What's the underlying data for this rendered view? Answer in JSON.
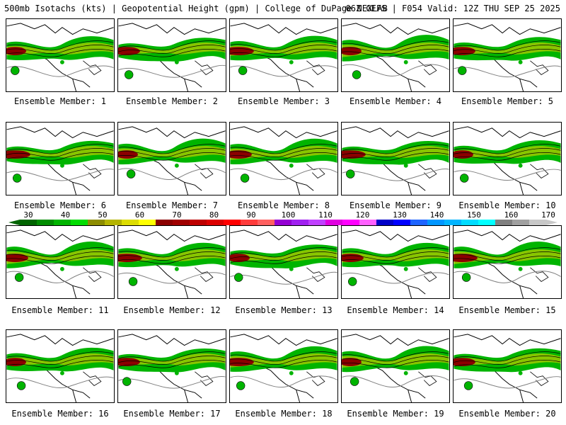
{
  "header": {
    "title": "500mb Isotachs (kts) | Geopotential Height (gpm) | College of DuPage NEXLAB",
    "run_info": "06Z GEFS | F054 Valid: 12Z THU SEP 25 2025"
  },
  "colorbar": {
    "labels": [
      "30",
      "40",
      "50",
      "60",
      "70",
      "80",
      "90",
      "100",
      "110",
      "120",
      "130",
      "140",
      "150",
      "160",
      "170"
    ],
    "colors": [
      "#006400",
      "#008c00",
      "#00b400",
      "#00dc00",
      "#8c8c00",
      "#b4b400",
      "#dcdc00",
      "#ffff00",
      "#8b0000",
      "#a00000",
      "#be0000",
      "#dc0000",
      "#ff0000",
      "#ff3c3c",
      "#ff6060",
      "#9400d3",
      "#a020f0",
      "#c040ff",
      "#e000e0",
      "#ff00ff",
      "#ff60ff",
      "#0000c8",
      "#0000ff",
      "#1e64ff",
      "#0096ff",
      "#00b4ff",
      "#00dcff",
      "#00ffff",
      "#808080",
      "#a0a0a0",
      "#c8c8c8"
    ]
  },
  "map_colors": {
    "speed_low": "#00b400",
    "speed_mid": "#a0c800",
    "speed_high": "#8b0000",
    "contour": "#000000",
    "coast": "#000000",
    "height_line": "#808080"
  },
  "members": [
    {
      "label": "Ensemble Member: 1"
    },
    {
      "label": "Ensemble Member: 2"
    },
    {
      "label": "Ensemble Member: 3"
    },
    {
      "label": "Ensemble Member: 4"
    },
    {
      "label": "Ensemble Member: 5"
    },
    {
      "label": "Ensemble Member: 6"
    },
    {
      "label": "Ensemble Member: 7"
    },
    {
      "label": "Ensemble Member: 8"
    },
    {
      "label": "Ensemble Member: 9"
    },
    {
      "label": "Ensemble Member: 10"
    },
    {
      "label": "Ensemble Member: 11"
    },
    {
      "label": "Ensemble Member: 12"
    },
    {
      "label": "Ensemble Member: 13"
    },
    {
      "label": "Ensemble Member: 14"
    },
    {
      "label": "Ensemble Member: 15"
    },
    {
      "label": "Ensemble Member: 16"
    },
    {
      "label": "Ensemble Member: 17"
    },
    {
      "label": "Ensemble Member: 18"
    },
    {
      "label": "Ensemble Member: 19"
    },
    {
      "label": "Ensemble Member: 20"
    }
  ]
}
